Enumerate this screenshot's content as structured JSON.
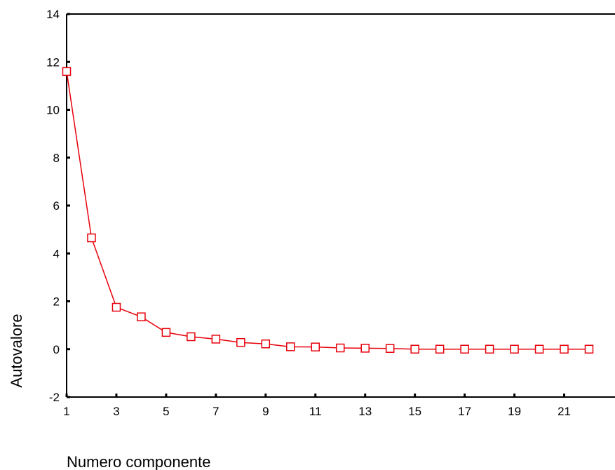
{
  "chart_data": {
    "type": "line",
    "title": "",
    "xlabel": "Numero componente",
    "ylabel": "Autovalore",
    "x": [
      1,
      2,
      3,
      4,
      5,
      6,
      7,
      8,
      9,
      10,
      11,
      12,
      13,
      14,
      15,
      16,
      17,
      18,
      19,
      20,
      21,
      22
    ],
    "series": [
      {
        "values": [
          11.6,
          4.65,
          1.75,
          1.35,
          0.7,
          0.52,
          0.42,
          0.28,
          0.22,
          0.1,
          0.09,
          0.05,
          0.04,
          0.03,
          0.0,
          0.0,
          0.0,
          0.0,
          0.0,
          0.0,
          0.0,
          0.0
        ],
        "color": "#e8000b",
        "marker": "square"
      }
    ],
    "xticks": [
      "1",
      "3",
      "5",
      "7",
      "9",
      "11",
      "13",
      "15",
      "17",
      "19",
      "21"
    ],
    "yticks": [
      "-2",
      "0",
      "2",
      "4",
      "6",
      "8",
      "10",
      "12",
      "14"
    ],
    "xlim": [
      1,
      22
    ],
    "ylim": [
      -2,
      14
    ],
    "grid": false,
    "legend": "none"
  }
}
